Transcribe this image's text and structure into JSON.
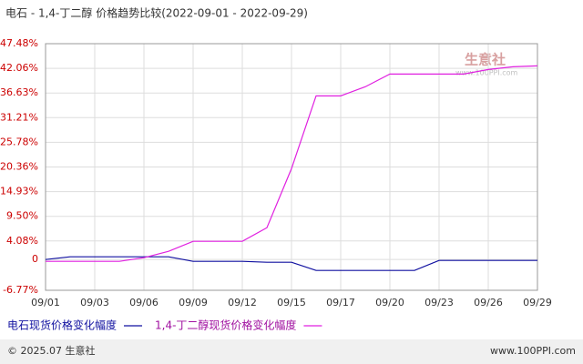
{
  "chart_data": {
    "type": "line",
    "title": "电石 - 1,4-丁二醇 价格趋势比较(2022-09-01 - 2022-09-29)",
    "categories": [
      "09/01",
      null,
      "09/03",
      null,
      "09/06",
      null,
      "09/09",
      null,
      "09/12",
      null,
      "09/15",
      null,
      "09/17",
      null,
      "09/20",
      null,
      "09/23",
      null,
      "09/26",
      null,
      "09/29"
    ],
    "series": [
      {
        "name": "电石现货价格变化幅度",
        "color": "#1010a0",
        "values": [
          0,
          0.6,
          0.6,
          0.6,
          0.6,
          0.6,
          -0.4,
          -0.4,
          -0.4,
          -0.6,
          -0.6,
          -2.4,
          -2.4,
          -2.4,
          -2.4,
          -2.4,
          -0.2,
          -0.2,
          -0.2,
          -0.2,
          -0.2
        ]
      },
      {
        "name": "1,4-丁二醇现货价格变化幅度",
        "color": "#e020e0",
        "values": [
          -0.4,
          -0.4,
          -0.4,
          -0.4,
          0.4,
          1.8,
          4.0,
          4.0,
          4.0,
          7.0,
          20.0,
          36.0,
          36.0,
          38.0,
          40.8,
          40.8,
          40.8,
          40.8,
          41.8,
          42.4,
          42.6
        ]
      }
    ],
    "ylim": [
      -6.77,
      47.48
    ],
    "yticks": [
      {
        "value": -6.77,
        "label": "-6.77%"
      },
      0,
      {
        "value": 4.08,
        "label": "4.08%"
      },
      {
        "value": 9.5,
        "label": "9.50%"
      },
      {
        "value": 14.93,
        "label": "14.93%"
      },
      {
        "value": 20.36,
        "label": "20.36%"
      },
      {
        "value": 25.78,
        "label": "25.78%"
      },
      {
        "value": 31.21,
        "label": "31.21%"
      },
      {
        "value": 36.63,
        "label": "36.63%"
      },
      {
        "value": 42.06,
        "label": "42.06%"
      },
      {
        "value": 47.48,
        "label": "47.48%"
      }
    ],
    "grid": true,
    "watermark": "生意社",
    "watermark_url": "www.100PPI.com",
    "footer_left": "© 2025.07 生意社",
    "footer_right": "www.100PPI.com"
  }
}
